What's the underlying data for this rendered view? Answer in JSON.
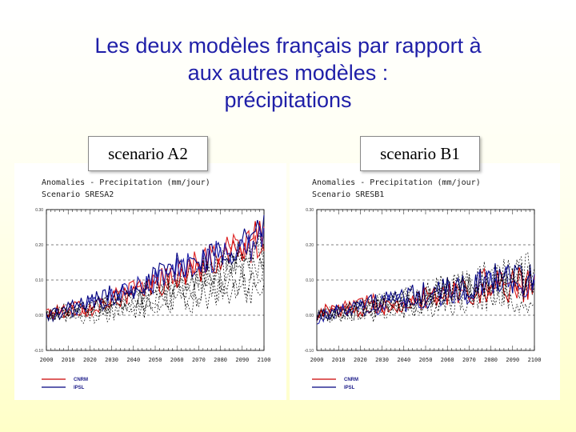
{
  "slide": {
    "title_lines": [
      "Les deux modèles français par rapport à",
      "aux autres modèles :",
      "précipitations"
    ]
  },
  "panels": [
    {
      "scenario_label": "scenario A2",
      "legend": [
        {
          "name": "CNRM",
          "color": "#cc0000"
        },
        {
          "name": "IPSL",
          "color": "#000080"
        }
      ]
    },
    {
      "scenario_label": "scenario B1",
      "legend": [
        {
          "name": "CNRM",
          "color": "#cc0000"
        },
        {
          "name": "IPSL",
          "color": "#000080"
        }
      ]
    }
  ],
  "chart_data": [
    {
      "type": "line",
      "title": "Anomalies - Precipitation (mm/jour)",
      "subtitle": "Scenario SRESA2",
      "xlim": [
        2000,
        2100
      ],
      "ylim": [
        -0.1,
        0.3
      ],
      "x_ticks": [
        "2000",
        "2010",
        "2020",
        "2030",
        "2040",
        "2050",
        "2060",
        "2070",
        "2080",
        "2090",
        "2100"
      ],
      "y_ticks": [
        "-0.10",
        "0.00",
        "0.10",
        "0.20",
        "0.30"
      ],
      "grid": true,
      "series": [
        {
          "name": "CNRM",
          "color": "#cc0000",
          "keypoints": [
            [
              2000,
              0.0
            ],
            [
              2020,
              0.03
            ],
            [
              2040,
              0.06
            ],
            [
              2060,
              0.11
            ],
            [
              2080,
              0.16
            ],
            [
              2100,
              0.23
            ]
          ]
        },
        {
          "name": "CNRM",
          "color": "#dd2222",
          "keypoints": [
            [
              2000,
              0.01
            ],
            [
              2020,
              0.02
            ],
            [
              2040,
              0.07
            ],
            [
              2060,
              0.12
            ],
            [
              2080,
              0.18
            ],
            [
              2100,
              0.2
            ]
          ]
        },
        {
          "name": "IPSL",
          "color": "#000080",
          "keypoints": [
            [
              2000,
              0.0
            ],
            [
              2020,
              0.04
            ],
            [
              2040,
              0.08
            ],
            [
              2060,
              0.14
            ],
            [
              2080,
              0.18
            ],
            [
              2100,
              0.24
            ]
          ]
        },
        {
          "name": "IPSL",
          "color": "#2222aa",
          "keypoints": [
            [
              2000,
              -0.01
            ],
            [
              2020,
              0.03
            ],
            [
              2040,
              0.07
            ],
            [
              2060,
              0.13
            ],
            [
              2080,
              0.17
            ],
            [
              2100,
              0.21
            ]
          ]
        },
        {
          "name": "",
          "color": "#000000",
          "dashed": true,
          "keypoints": [
            [
              2000,
              0.0
            ],
            [
              2020,
              0.01
            ],
            [
              2040,
              0.03
            ],
            [
              2060,
              0.05
            ],
            [
              2080,
              0.08
            ],
            [
              2100,
              0.12
            ]
          ]
        },
        {
          "name": "",
          "color": "#000000",
          "dashed": true,
          "keypoints": [
            [
              2000,
              0.0
            ],
            [
              2020,
              0.02
            ],
            [
              2040,
              0.04
            ],
            [
              2060,
              0.07
            ],
            [
              2080,
              0.11
            ],
            [
              2100,
              0.16
            ]
          ]
        },
        {
          "name": "",
          "color": "#000000",
          "dashed": true,
          "keypoints": [
            [
              2000,
              0.0
            ],
            [
              2020,
              0.03
            ],
            [
              2040,
              0.06
            ],
            [
              2060,
              0.1
            ],
            [
              2080,
              0.14
            ],
            [
              2100,
              0.19
            ]
          ]
        },
        {
          "name": "",
          "color": "#000000",
          "dashed": true,
          "keypoints": [
            [
              2000,
              0.0
            ],
            [
              2020,
              0.0
            ],
            [
              2040,
              0.02
            ],
            [
              2060,
              0.04
            ],
            [
              2080,
              0.06
            ],
            [
              2100,
              0.08
            ]
          ]
        },
        {
          "name": "",
          "color": "#000000",
          "dashed": true,
          "keypoints": [
            [
              2000,
              0.0
            ],
            [
              2020,
              0.02
            ],
            [
              2040,
              0.05
            ],
            [
              2060,
              0.09
            ],
            [
              2080,
              0.13
            ],
            [
              2100,
              0.15
            ]
          ]
        }
      ]
    },
    {
      "type": "line",
      "title": "Anomalies - Precipitation (mm/jour)",
      "subtitle": "Scenario SRESB1",
      "xlim": [
        2000,
        2100
      ],
      "ylim": [
        -0.1,
        0.3
      ],
      "x_ticks": [
        "2000",
        "2010",
        "2020",
        "2030",
        "2040",
        "2050",
        "2060",
        "2070",
        "2080",
        "2090",
        "2100"
      ],
      "y_ticks": [
        "-0.10",
        "0.00",
        "0.10",
        "0.20",
        "0.30"
      ],
      "grid": true,
      "series": [
        {
          "name": "CNRM",
          "color": "#cc0000",
          "keypoints": [
            [
              2000,
              0.01
            ],
            [
              2020,
              0.02
            ],
            [
              2040,
              0.04
            ],
            [
              2060,
              0.06
            ],
            [
              2080,
              0.08
            ],
            [
              2100,
              0.09
            ]
          ]
        },
        {
          "name": "CNRM",
          "color": "#dd2222",
          "keypoints": [
            [
              2000,
              0.0
            ],
            [
              2020,
              0.03
            ],
            [
              2040,
              0.04
            ],
            [
              2060,
              0.07
            ],
            [
              2080,
              0.09
            ],
            [
              2100,
              0.1
            ]
          ]
        },
        {
          "name": "IPSL",
          "color": "#000080",
          "keypoints": [
            [
              2000,
              0.0
            ],
            [
              2020,
              0.03
            ],
            [
              2040,
              0.05
            ],
            [
              2060,
              0.07
            ],
            [
              2080,
              0.1
            ],
            [
              2100,
              0.11
            ]
          ]
        },
        {
          "name": "IPSL",
          "color": "#2222aa",
          "keypoints": [
            [
              2000,
              -0.01
            ],
            [
              2020,
              0.02
            ],
            [
              2040,
              0.04
            ],
            [
              2060,
              0.06
            ],
            [
              2080,
              0.09
            ],
            [
              2100,
              0.1
            ]
          ]
        },
        {
          "name": "",
          "color": "#000000",
          "dashed": true,
          "keypoints": [
            [
              2000,
              0.0
            ],
            [
              2020,
              0.02
            ],
            [
              2040,
              0.05
            ],
            [
              2060,
              0.08
            ],
            [
              2080,
              0.12
            ],
            [
              2100,
              0.14
            ]
          ]
        },
        {
          "name": "",
          "color": "#000000",
          "dashed": true,
          "keypoints": [
            [
              2000,
              0.0
            ],
            [
              2020,
              0.01
            ],
            [
              2040,
              0.03
            ],
            [
              2060,
              0.05
            ],
            [
              2080,
              0.07
            ],
            [
              2100,
              0.09
            ]
          ]
        },
        {
          "name": "",
          "color": "#000000",
          "dashed": true,
          "keypoints": [
            [
              2000,
              0.0
            ],
            [
              2020,
              0.02
            ],
            [
              2040,
              0.04
            ],
            [
              2060,
              0.06
            ],
            [
              2080,
              0.08
            ],
            [
              2100,
              0.1
            ]
          ]
        },
        {
          "name": "",
          "color": "#000000",
          "dashed": true,
          "keypoints": [
            [
              2000,
              0.0
            ],
            [
              2020,
              0.0
            ],
            [
              2040,
              0.02
            ],
            [
              2060,
              0.03
            ],
            [
              2080,
              0.05
            ],
            [
              2100,
              0.06
            ]
          ]
        },
        {
          "name": "",
          "color": "#000000",
          "dashed": true,
          "keypoints": [
            [
              2000,
              0.0
            ],
            [
              2020,
              0.02
            ],
            [
              2040,
              0.04
            ],
            [
              2060,
              0.07
            ],
            [
              2080,
              0.1
            ],
            [
              2100,
              0.12
            ]
          ]
        }
      ]
    }
  ]
}
